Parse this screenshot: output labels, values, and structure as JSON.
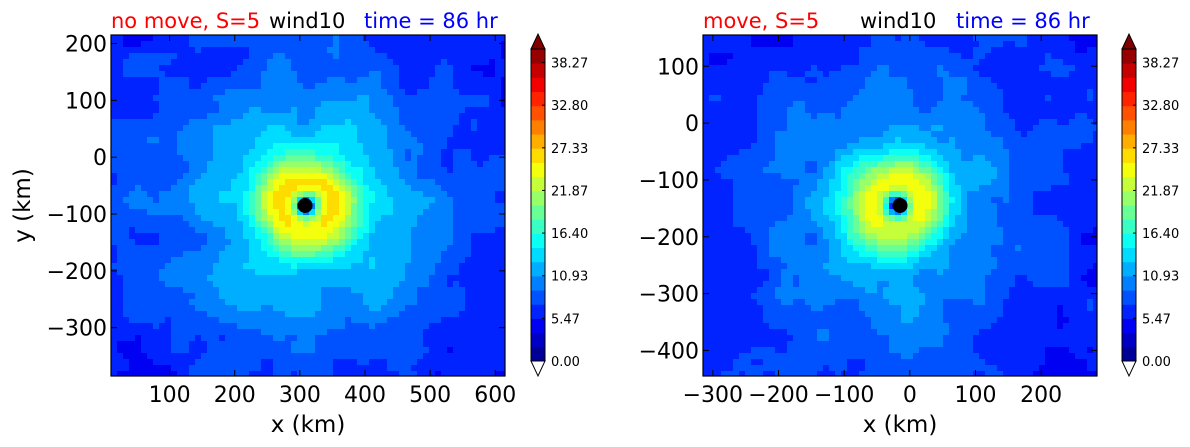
{
  "chart_data": [
    {
      "type": "heatmap",
      "title_parts": [
        "no move, S=5",
        "wind10",
        "time = 86 hr"
      ],
      "title_colors": [
        "#ff0000",
        "#000000",
        "#0000ff"
      ],
      "xlabel": "x (km)",
      "ylabel": "y (km)",
      "xlim": [
        10,
        615
      ],
      "ylim": [
        -385,
        215
      ],
      "xticks": [
        100,
        200,
        300,
        400,
        500,
        600
      ],
      "yticks": [
        200,
        100,
        0,
        -100,
        -200,
        -300
      ],
      "xtick_labels": [
        "100",
        "200",
        "300",
        "400",
        "500",
        "600"
      ],
      "ytick_labels": [
        "200",
        "100",
        "0",
        "−100",
        "−200",
        "−300"
      ],
      "center": [
        310,
        -85
      ],
      "marker": [
        308,
        -85
      ],
      "colorbar": {
        "min": 0,
        "max": 40,
        "ticks": [
          0.0,
          5.47,
          10.93,
          16.4,
          21.87,
          27.33,
          32.8,
          38.27
        ],
        "tick_labels": [
          "0.00",
          "5.47",
          "10.93",
          "16.40",
          "21.87",
          "27.33",
          "32.80",
          "38.27"
        ],
        "extend": "both"
      }
    },
    {
      "type": "heatmap",
      "title_parts": [
        "move, S=5",
        "wind10",
        "time = 86 hr"
      ],
      "title_colors": [
        "#ff0000",
        "#000000",
        "#0000ff"
      ],
      "xlabel": "x (km)",
      "ylabel": "",
      "xlim": [
        -315,
        285
      ],
      "ylim": [
        -445,
        155
      ],
      "xticks": [
        -300,
        -200,
        -100,
        0,
        100,
        200
      ],
      "yticks": [
        100,
        0,
        -100,
        -200,
        -300,
        -400
      ],
      "xtick_labels": [
        "−300",
        "−200",
        "−100",
        "0",
        "100",
        "200"
      ],
      "ytick_labels": [
        "100",
        "0",
        "−100",
        "−200",
        "−300",
        "−400"
      ],
      "center": [
        -20,
        -145
      ],
      "marker": [
        -15,
        -145
      ],
      "colorbar": {
        "min": 0,
        "max": 40,
        "ticks": [
          0.0,
          5.47,
          10.93,
          16.4,
          21.87,
          27.33,
          32.8,
          38.27
        ],
        "tick_labels": [
          "0.00",
          "5.47",
          "10.93",
          "16.40",
          "21.87",
          "27.33",
          "32.80",
          "38.27"
        ],
        "extend": "both"
      }
    }
  ]
}
